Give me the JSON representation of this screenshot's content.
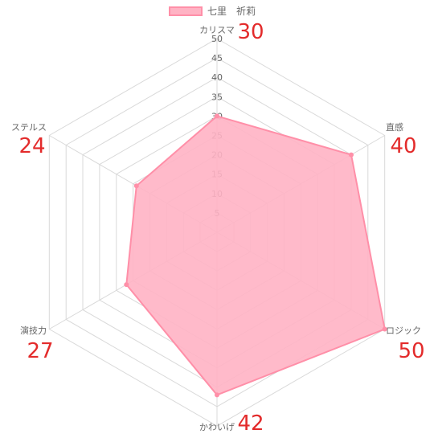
{
  "legend": {
    "label": "七里　祈莉"
  },
  "chart_data": {
    "type": "radar",
    "title": "",
    "axes": [
      "カリスマ",
      "直感",
      "ロジック",
      "かわいげ",
      "演技力",
      "ステルス"
    ],
    "range": [
      0,
      50
    ],
    "ticks": [
      5,
      10,
      15,
      20,
      25,
      30,
      35,
      40,
      45,
      50
    ],
    "series": [
      {
        "name": "七里　祈莉",
        "values": [
          30,
          40,
          50,
          42,
          27,
          24
        ]
      }
    ],
    "value_labels": [
      "30",
      "40",
      "50",
      "42",
      "27",
      "24"
    ],
    "legend_position": "top",
    "grid": true,
    "colors": {
      "fill": "#ffb3c4",
      "line": "#ff8fa8",
      "grid": "#d9d9d9",
      "value_label": "#e32b2b"
    }
  }
}
